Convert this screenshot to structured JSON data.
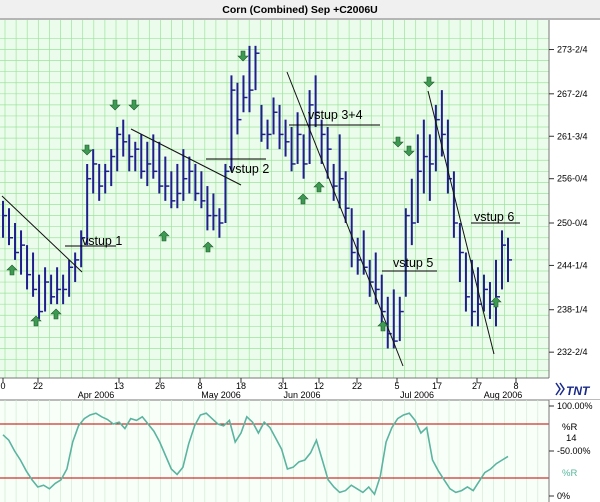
{
  "chart_data": [
    {
      "type": "ohlc-bar",
      "title": "Corn (Combined) Sep +C2006U",
      "y_ticks": [
        "273-2/4",
        "267-2/4",
        "261-3/4",
        "256-0/4",
        "250-0/4",
        "244-1/4",
        "238-1/4",
        "232-2/4"
      ],
      "y_tick_values": [
        273.5,
        267.5,
        261.75,
        256.0,
        250.0,
        244.25,
        238.25,
        232.5
      ],
      "ylim": [
        229.0,
        277.5
      ],
      "x_ticks": [
        "0",
        "22",
        "13",
        "26",
        "8",
        "18",
        "31",
        "12",
        "22",
        "5",
        "17",
        "27",
        "8"
      ],
      "x_months": [
        "Apr 2006",
        "May 2006",
        "Jun 2006",
        "Jul 2006",
        "Aug 2006"
      ],
      "ohlc": [
        [
          253,
          248,
          251
        ],
        [
          252,
          247,
          248
        ],
        [
          250,
          245,
          246
        ],
        [
          249,
          243,
          247
        ],
        [
          247,
          241,
          243
        ],
        [
          246,
          240,
          241
        ],
        [
          243,
          237,
          238
        ],
        [
          244,
          238,
          242
        ],
        [
          243,
          239,
          240
        ],
        [
          244,
          239,
          241
        ],
        [
          243,
          239,
          241
        ],
        [
          245,
          240,
          244
        ],
        [
          246,
          242,
          245
        ],
        [
          249,
          244,
          248
        ],
        [
          258,
          247,
          256
        ],
        [
          260,
          254,
          258
        ],
        [
          258,
          253,
          255
        ],
        [
          258,
          254,
          257
        ],
        [
          260,
          255,
          259
        ],
        [
          263,
          257,
          262
        ],
        [
          264,
          259,
          261
        ],
        [
          262,
          257,
          259
        ],
        [
          261,
          257,
          260
        ],
        [
          262,
          256,
          257
        ],
        [
          261,
          255,
          258
        ],
        [
          262,
          256,
          257
        ],
        [
          261,
          254,
          255
        ],
        [
          259,
          253,
          255
        ],
        [
          257,
          252,
          253
        ],
        [
          258,
          252,
          254
        ],
        [
          260,
          253,
          256
        ],
        [
          259,
          254,
          257
        ],
        [
          258,
          253,
          254
        ],
        [
          257,
          252,
          253
        ],
        [
          255,
          249,
          251
        ],
        [
          254,
          249,
          251
        ],
        [
          252,
          248,
          250
        ],
        [
          258,
          250,
          257
        ],
        [
          270,
          257,
          268
        ],
        [
          269,
          262,
          264
        ],
        [
          270,
          265,
          267
        ],
        [
          274,
          265,
          268
        ],
        [
          274,
          268,
          273
        ],
        [
          266,
          261,
          262
        ],
        [
          264,
          260,
          262
        ],
        [
          267,
          262,
          265
        ],
        [
          266,
          260,
          262
        ],
        [
          264,
          259,
          261
        ],
        [
          263,
          257,
          258
        ],
        [
          265,
          258,
          262
        ],
        [
          262,
          256,
          258
        ],
        [
          268,
          258,
          266
        ],
        [
          270,
          263,
          265
        ],
        [
          264,
          258,
          262
        ],
        [
          263,
          256,
          260
        ],
        [
          258,
          253,
          255
        ],
        [
          262,
          252,
          256
        ],
        [
          257,
          250,
          252
        ],
        [
          252,
          244,
          246
        ],
        [
          248,
          243,
          245
        ],
        [
          249,
          243,
          244
        ],
        [
          245,
          240,
          242
        ],
        [
          246,
          239,
          241
        ],
        [
          243,
          236,
          238
        ],
        [
          240,
          233,
          235
        ],
        [
          241,
          233,
          234
        ],
        [
          240,
          234,
          238
        ],
        [
          252,
          240,
          251
        ],
        [
          256,
          247,
          250
        ],
        [
          262,
          250,
          257
        ],
        [
          264,
          254,
          259
        ],
        [
          262,
          253,
          258
        ],
        [
          266,
          257,
          264
        ],
        [
          268,
          259,
          262
        ],
        [
          264,
          254,
          256
        ],
        [
          257,
          248,
          250
        ],
        [
          250,
          242,
          246
        ],
        [
          246,
          238,
          240
        ],
        [
          245,
          236,
          238
        ],
        [
          244,
          236,
          239
        ],
        [
          243,
          238,
          241
        ],
        [
          242,
          237,
          239
        ],
        [
          245,
          236,
          240
        ],
        [
          249,
          241,
          247
        ],
        [
          248,
          242,
          245
        ]
      ],
      "annotations": [
        "vstup 1",
        "vstup 2",
        "vstup 3+4",
        "vstup 5",
        "vstup 6"
      ],
      "logo": "TNT",
      "colors": {
        "bars": "#1e1e8c",
        "grid": "#9be49b",
        "arrow": "#3e9a52",
        "line": "#111111"
      }
    },
    {
      "type": "line",
      "name": "%R",
      "period": "14",
      "y_ticks": [
        "100.00%",
        "-50.00%",
        "0%"
      ],
      "levels": [
        80,
        20
      ],
      "values": [
        68,
        62,
        50,
        40,
        28,
        18,
        10,
        12,
        8,
        14,
        18,
        30,
        60,
        78,
        86,
        90,
        92,
        88,
        85,
        80,
        82,
        75,
        86,
        84,
        88,
        80,
        72,
        60,
        45,
        30,
        24,
        32,
        58,
        78,
        90,
        92,
        86,
        80,
        78,
        84,
        60,
        70,
        88,
        82,
        70,
        82,
        76,
        64,
        52,
        30,
        32,
        38,
        40,
        48,
        62,
        40,
        18,
        10,
        4,
        6,
        12,
        8,
        4,
        10,
        2,
        22,
        60,
        76,
        86,
        90,
        92,
        84,
        70,
        76,
        40,
        28,
        18,
        8,
        4,
        6,
        10,
        6,
        16,
        26,
        30,
        36,
        40,
        44
      ],
      "colors": {
        "line": "#5ab4a0",
        "levels": "#c00000"
      }
    }
  ]
}
